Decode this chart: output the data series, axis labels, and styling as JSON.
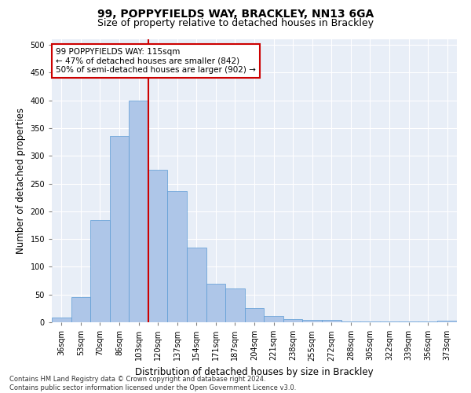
{
  "title": "99, POPPYFIELDS WAY, BRACKLEY, NN13 6GA",
  "subtitle": "Size of property relative to detached houses in Brackley",
  "xlabel": "Distribution of detached houses by size in Brackley",
  "ylabel": "Number of detached properties",
  "categories": [
    "36sqm",
    "53sqm",
    "70sqm",
    "86sqm",
    "103sqm",
    "120sqm",
    "137sqm",
    "154sqm",
    "171sqm",
    "187sqm",
    "204sqm",
    "221sqm",
    "238sqm",
    "255sqm",
    "272sqm",
    "288sqm",
    "305sqm",
    "322sqm",
    "339sqm",
    "356sqm",
    "373sqm"
  ],
  "values": [
    9,
    46,
    184,
    336,
    399,
    275,
    237,
    135,
    69,
    61,
    25,
    11,
    5,
    4,
    4,
    2,
    2,
    1,
    1,
    1,
    3
  ],
  "bar_color": "#aec6e8",
  "bar_edge_color": "#5b9bd5",
  "vline_color": "#cc0000",
  "annotation_text": "99 POPPYFIELDS WAY: 115sqm\n← 47% of detached houses are smaller (842)\n50% of semi-detached houses are larger (902) →",
  "annotation_box_color": "#ffffff",
  "annotation_box_edge_color": "#cc0000",
  "ylim": [
    0,
    510
  ],
  "yticks": [
    0,
    50,
    100,
    150,
    200,
    250,
    300,
    350,
    400,
    450,
    500
  ],
  "bg_color": "#e8eef7",
  "footnote": "Contains HM Land Registry data © Crown copyright and database right 2024.\nContains public sector information licensed under the Open Government Licence v3.0.",
  "title_fontsize": 10,
  "subtitle_fontsize": 9,
  "tick_fontsize": 7,
  "xlabel_fontsize": 8.5,
  "ylabel_fontsize": 8.5,
  "annotation_fontsize": 7.5
}
